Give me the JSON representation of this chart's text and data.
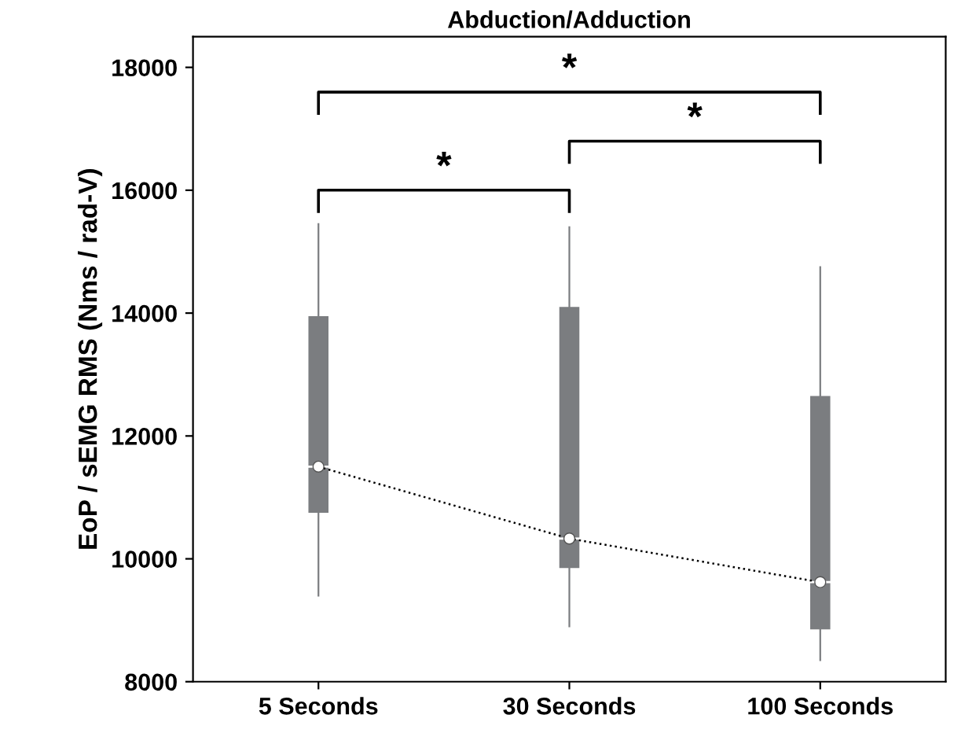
{
  "chart_data": {
    "type": "box",
    "title": "Abduction/Adduction",
    "ylabel": "EoP / sEMG RMS (Nms / rad-V)",
    "categories": [
      "5 Seconds",
      "30 Seconds",
      "100 Seconds"
    ],
    "colors": [
      "#7b7d80",
      "#7b7d80",
      "#7b7d80"
    ],
    "boxes": [
      {
        "low": 9400,
        "q1": 10750,
        "median": 11500,
        "q3": 13950,
        "high": 15450
      },
      {
        "low": 8900,
        "q1": 9850,
        "median": 10330,
        "q3": 14100,
        "high": 15400
      },
      {
        "low": 8350,
        "q1": 8850,
        "median": 9620,
        "q3": 12650,
        "high": 14750
      }
    ],
    "series": [
      {
        "type": "line",
        "x": [
          "5 Seconds",
          "30 Seconds",
          "100 Seconds"
        ],
        "values": [
          11500,
          10330,
          9620
        ],
        "color": "#000000",
        "line_style": "dotted",
        "marker": "circle"
      }
    ],
    "ylim": [
      8000,
      18500
    ],
    "yticks": [
      8000,
      10000,
      12000,
      14000,
      16000,
      18000
    ],
    "grid": false,
    "legend": false,
    "annotations": [
      "*",
      "*",
      "*"
    ]
  }
}
